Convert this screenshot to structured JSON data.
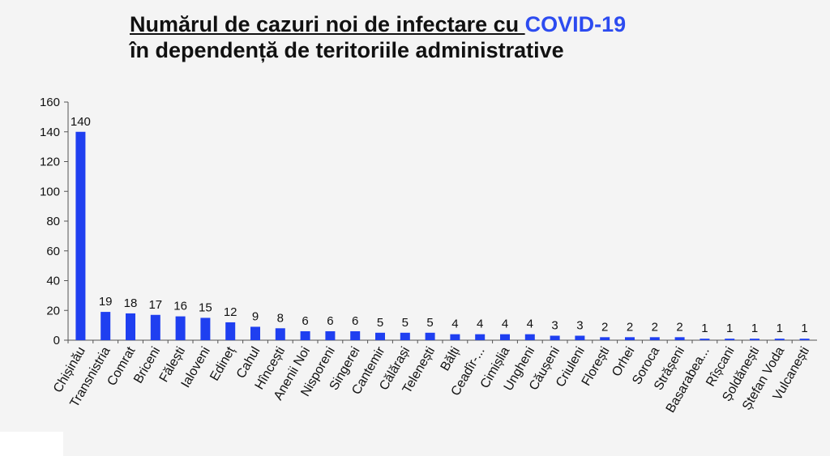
{
  "title": {
    "line1_main": "Numărul de cazuri noi de infectare cu ",
    "line1_accent": "COVID-19",
    "line2": "în dependență de teritoriile administrative"
  },
  "colors": {
    "bar": "#1f3ff0",
    "accent": "#2c4bf0"
  },
  "chart_data": {
    "type": "bar",
    "categories": [
      "Chișinău",
      "Transnistria",
      "Comrat",
      "Briceni",
      "Fălești",
      "Ialoveni",
      "Edineț",
      "Cahul",
      "Hîncești",
      "Anenii Noi",
      "Nisporeni",
      "Singerei",
      "Cantemir",
      "Călărași",
      "Telenești",
      "Bălți",
      "Ceadîr-...",
      "Cimișlia",
      "Ungheni",
      "Căușeni",
      "Criuleni",
      "Florești",
      "Orhei",
      "Soroca",
      "Strășeni",
      "Basarabea...",
      "Rîșcani",
      "Șoldănești",
      "Ștefan Voda",
      "Vulcanești"
    ],
    "values": [
      140,
      19,
      18,
      17,
      16,
      15,
      12,
      9,
      8,
      6,
      6,
      6,
      5,
      5,
      5,
      4,
      4,
      4,
      4,
      3,
      3,
      2,
      2,
      2,
      2,
      1,
      1,
      1,
      1,
      1
    ],
    "ylim": [
      0,
      160
    ],
    "yticks": [
      0,
      20,
      40,
      60,
      80,
      100,
      120,
      140,
      160
    ],
    "grid": false,
    "legend": "none"
  }
}
